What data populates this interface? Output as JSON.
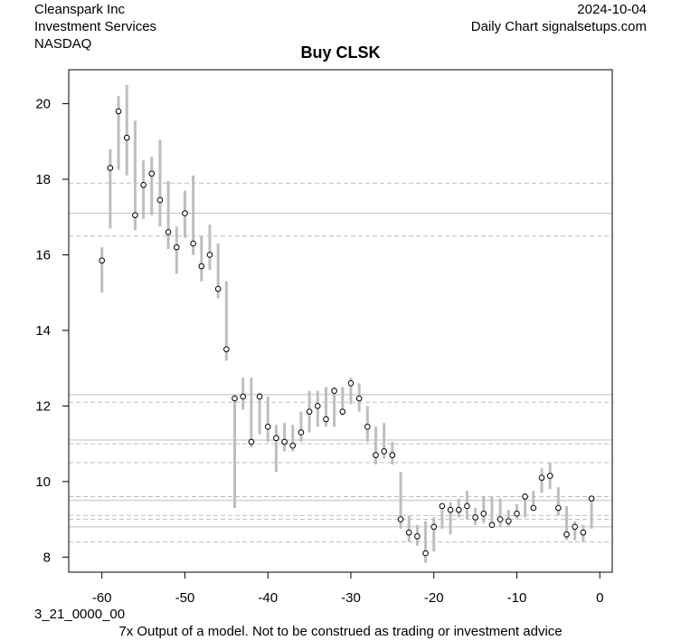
{
  "header": {
    "company": "Cleanspark Inc",
    "sector": "Investment Services",
    "exchange": "NASDAQ",
    "date": "2024-10-04",
    "source": "Daily Chart signalsetups.com"
  },
  "footer": {
    "code": "3_21_0000_00",
    "disclaimer": "7x Output of a model. Not to be construed as trading or investment advice"
  },
  "chart_data": {
    "type": "scatter",
    "title": "Buy CLSK",
    "xlabel": "",
    "ylabel": "",
    "xlim": [
      -64,
      1.5
    ],
    "ylim": [
      7.6,
      20.9
    ],
    "xticks": [
      -60,
      -50,
      -40,
      -30,
      -20,
      -10,
      0
    ],
    "yticks": [
      8,
      10,
      12,
      14,
      16,
      18,
      20
    ],
    "grid": false,
    "colors": {
      "range_bar": "#bebebe",
      "solid_line": "#bebebe",
      "dashed_line": "#bebebe",
      "point_fill": "#ffffff",
      "point_stroke": "#000000"
    },
    "horizontal_lines_solid": [
      17.1,
      12.3,
      11.1,
      9.5,
      8.8
    ],
    "horizontal_lines_dashed": [
      17.9,
      16.5,
      12.1,
      11.0,
      10.5,
      9.6,
      9.1,
      9.0,
      8.4
    ],
    "series": [
      {
        "x": [
          -60,
          -59,
          -58,
          -57,
          -56,
          -55,
          -54,
          -53,
          -52,
          -51,
          -50,
          -49,
          -48,
          -47,
          -46,
          -45,
          -44,
          -43,
          -42,
          -41,
          -40,
          -39,
          -38,
          -37,
          -36,
          -35,
          -34,
          -33,
          -32,
          -31,
          -30,
          -29,
          -28,
          -27,
          -26,
          -25,
          -24,
          -23,
          -22,
          -21,
          -20,
          -19,
          -18,
          -17,
          -16,
          -15,
          -14,
          -13,
          -12,
          -11,
          -10,
          -9,
          -8,
          -7,
          -6,
          -5,
          -4,
          -3,
          -2,
          -1
        ],
        "close": [
          15.85,
          18.3,
          19.8,
          19.1,
          17.05,
          17.85,
          18.15,
          17.45,
          16.6,
          16.2,
          17.1,
          16.3,
          15.7,
          16.0,
          15.1,
          13.5,
          12.2,
          12.25,
          11.05,
          12.25,
          11.45,
          11.15,
          11.05,
          10.95,
          11.3,
          11.85,
          12.0,
          11.65,
          12.4,
          11.85,
          12.6,
          12.2,
          11.45,
          10.7,
          10.8,
          10.7,
          9.0,
          8.65,
          8.55,
          8.1,
          8.8,
          9.35,
          9.25,
          9.25,
          9.35,
          9.05,
          9.15,
          8.85,
          9.0,
          8.95,
          9.15,
          9.6,
          9.3,
          10.1,
          10.15,
          9.3,
          8.6,
          8.8,
          8.65,
          9.55
        ],
        "high": [
          16.2,
          18.8,
          20.2,
          20.5,
          19.55,
          18.5,
          18.6,
          19.05,
          17.95,
          16.75,
          17.7,
          18.1,
          16.5,
          16.8,
          16.3,
          15.3,
          12.3,
          12.75,
          12.75,
          12.35,
          12.25,
          11.5,
          11.55,
          11.5,
          11.85,
          12.4,
          12.4,
          12.5,
          12.5,
          12.5,
          12.75,
          12.6,
          12.0,
          11.45,
          11.55,
          11.05,
          10.25,
          9.1,
          8.85,
          8.95,
          9.05,
          9.4,
          9.45,
          9.55,
          9.75,
          9.3,
          9.6,
          9.6,
          9.55,
          9.25,
          9.4,
          9.7,
          9.75,
          10.35,
          10.5,
          9.85,
          9.35,
          8.95,
          8.85,
          9.6
        ],
        "low": [
          15.0,
          16.7,
          18.25,
          18.1,
          16.65,
          16.95,
          17.05,
          16.75,
          16.15,
          15.5,
          16.45,
          16.0,
          15.3,
          15.6,
          14.85,
          13.2,
          9.3,
          11.9,
          10.9,
          11.25,
          11.05,
          10.25,
          10.8,
          10.8,
          11.05,
          11.3,
          11.45,
          11.45,
          11.45,
          11.75,
          12.05,
          11.85,
          11.05,
          10.45,
          10.6,
          10.45,
          8.75,
          8.4,
          8.3,
          7.85,
          8.15,
          8.75,
          8.6,
          9.05,
          9.0,
          8.85,
          8.9,
          8.8,
          8.8,
          8.8,
          9.0,
          9.05,
          9.3,
          9.7,
          9.8,
          9.1,
          8.45,
          8.45,
          8.4,
          8.75
        ]
      }
    ]
  }
}
